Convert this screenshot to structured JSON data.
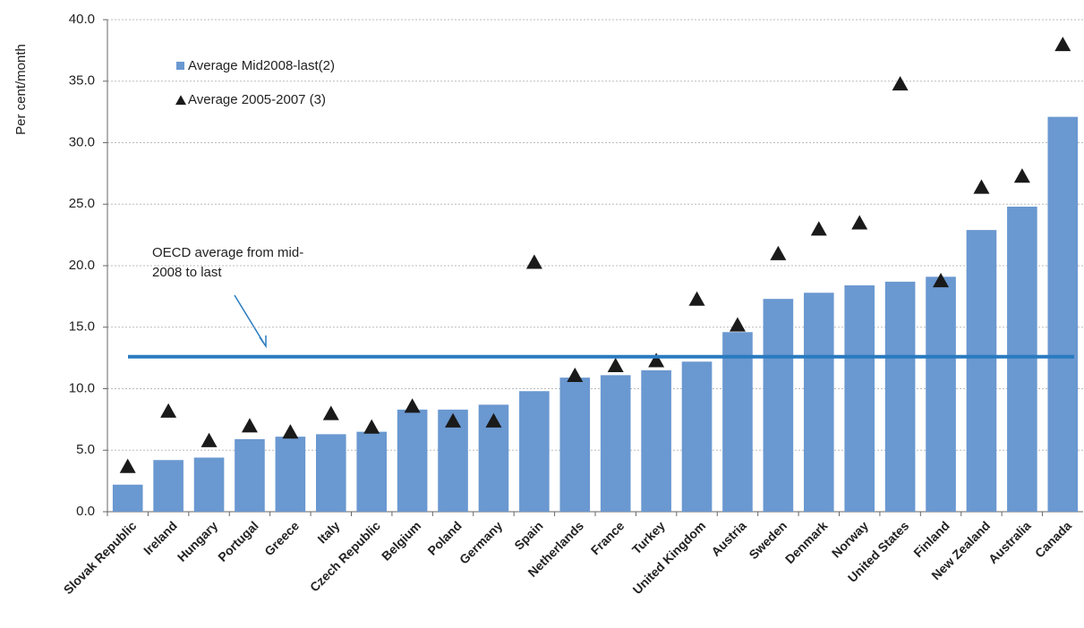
{
  "chart_data": {
    "type": "bar",
    "y_label": "Per cent/month",
    "categories": [
      "Slovak Republic",
      "Ireland",
      "Hungary",
      "Portugal",
      "Greece",
      "Italy",
      "Czech Republic",
      "Belgium",
      "Poland",
      "Germany",
      "Spain",
      "Netherlands",
      "France",
      "Turkey",
      "United Kingdom",
      "Austria",
      "Sweden",
      "Denmark",
      "Norway",
      "United States",
      "Finland",
      "New Zealand",
      "Australia",
      "Canada"
    ],
    "series": [
      {
        "name": "Average Mid2008-last(2)",
        "color": "#6a98d0",
        "marker": "bar",
        "values": [
          2.2,
          4.2,
          4.4,
          5.9,
          6.1,
          6.3,
          6.5,
          8.3,
          8.3,
          8.7,
          9.8,
          10.9,
          11.1,
          11.5,
          12.2,
          14.6,
          17.3,
          17.8,
          18.4,
          18.7,
          19.1,
          22.9,
          24.8,
          32.1
        ]
      },
      {
        "name": "Average 2005-2007 (3)",
        "color": "#1a1a1a",
        "marker": "triangle",
        "values": [
          3.7,
          8.2,
          5.8,
          7.0,
          6.5,
          8.0,
          6.9,
          8.6,
          7.4,
          7.4,
          20.3,
          11.1,
          11.9,
          12.3,
          17.3,
          15.2,
          21.0,
          23.0,
          23.5,
          34.8,
          18.8,
          26.4,
          27.3,
          38.0
        ]
      }
    ],
    "oecd_average": 12.6,
    "oecd_color": "#2a7bc0",
    "annotation": [
      "OECD average from mid-",
      "2008 to last"
    ],
    "ylim": [
      0,
      40
    ],
    "yticks": [
      {
        "value": 0,
        "label": "0.0"
      },
      {
        "value": 5,
        "label": "5.0"
      },
      {
        "value": 10,
        "label": "10.0"
      },
      {
        "value": 15,
        "label": "15.0"
      },
      {
        "value": 20,
        "label": "20.0"
      },
      {
        "value": 25,
        "label": "25.0"
      },
      {
        "value": 30,
        "label": "30.0"
      },
      {
        "value": 35,
        "label": "35.0"
      },
      {
        "value": 40,
        "label": "40.0"
      }
    ],
    "grid": true
  }
}
